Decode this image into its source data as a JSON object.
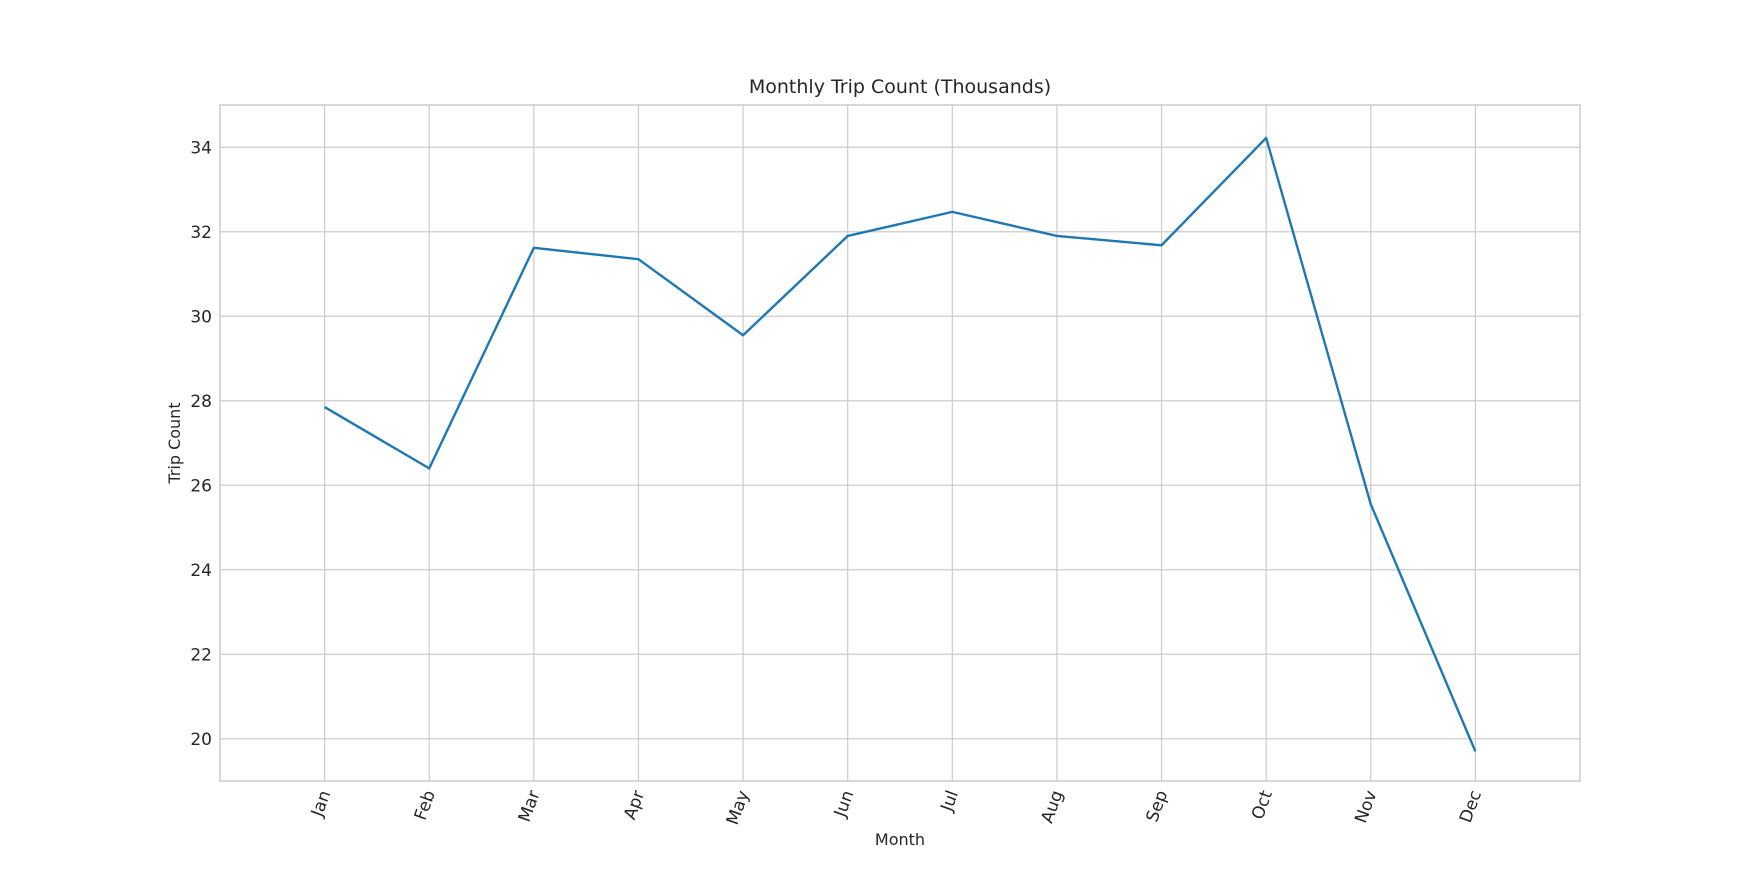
{
  "chart_data": {
    "type": "line",
    "title": "Monthly Trip Count (Thousands)",
    "xlabel": "Month",
    "ylabel": "Trip Count",
    "categories": [
      "Jan",
      "Feb",
      "Mar",
      "Apr",
      "May",
      "Jun",
      "Jul",
      "Aug",
      "Sep",
      "Oct",
      "Nov",
      "Dec"
    ],
    "series": [
      {
        "values": [
          27.85,
          26.4,
          31.62,
          31.35,
          29.55,
          31.9,
          32.47,
          31.9,
          31.68,
          34.22,
          25.55,
          19.7
        ],
        "color": "#1f77b4"
      }
    ],
    "yticks": [
      20,
      22,
      24,
      26,
      28,
      30,
      32,
      34
    ],
    "ylim": [
      19,
      35
    ],
    "grid": true,
    "legend": "none"
  }
}
